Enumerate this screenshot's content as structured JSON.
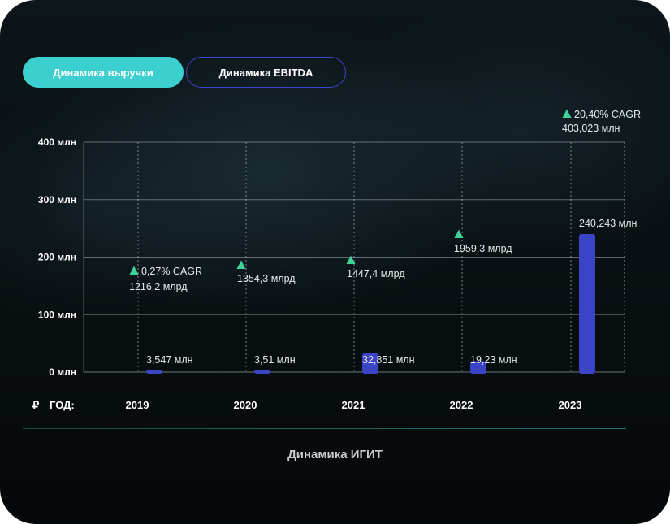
{
  "tabs": [
    {
      "label": "Динамика выручки",
      "active": true
    },
    {
      "label": "Динамика EBITDA",
      "active": false
    }
  ],
  "footer_title": "Динамика ИГИТ",
  "currency_symbol": "₽",
  "year_label": "ГОД:",
  "colors": {
    "accent": "#3ccfcf",
    "bar": "#3b43c6",
    "tab_border": "#3d44c9",
    "triangle": "#3ed39a"
  },
  "chart_data": {
    "type": "bar",
    "categories": [
      "2019",
      "2020",
      "2021",
      "2022",
      "2023"
    ],
    "values": [
      3.547,
      3.51,
      32.851,
      19.23,
      240.243
    ],
    "value_labels": [
      "3,547 млн",
      "3,51 млн",
      "32,851 млн",
      "19,23 млн",
      "240,243 млн"
    ],
    "ylim": [
      0,
      400
    ],
    "yticks": [
      0,
      100,
      200,
      300,
      400
    ],
    "ytick_labels": [
      "0 млн",
      "100 млн",
      "200 млн",
      "300 млн",
      "400 млн"
    ],
    "grid": true,
    "annotations": [
      {
        "year": "2019",
        "value": 1216.2,
        "cagr": "0,27% CAGR",
        "text": "1216,2 млрд"
      },
      {
        "year": "2020",
        "value": 1354.3,
        "cagr": "",
        "text": "1354,3 млрд"
      },
      {
        "year": "2021",
        "value": 1447.4,
        "cagr": "",
        "text": "1447,4 млрд"
      },
      {
        "year": "2022",
        "value": 1959.3,
        "cagr": "",
        "text": "1959,3 млрд"
      },
      {
        "year": "2023",
        "value": 403.023,
        "cagr": "20,40% CAGR",
        "text": "403,023 млн"
      }
    ]
  }
}
